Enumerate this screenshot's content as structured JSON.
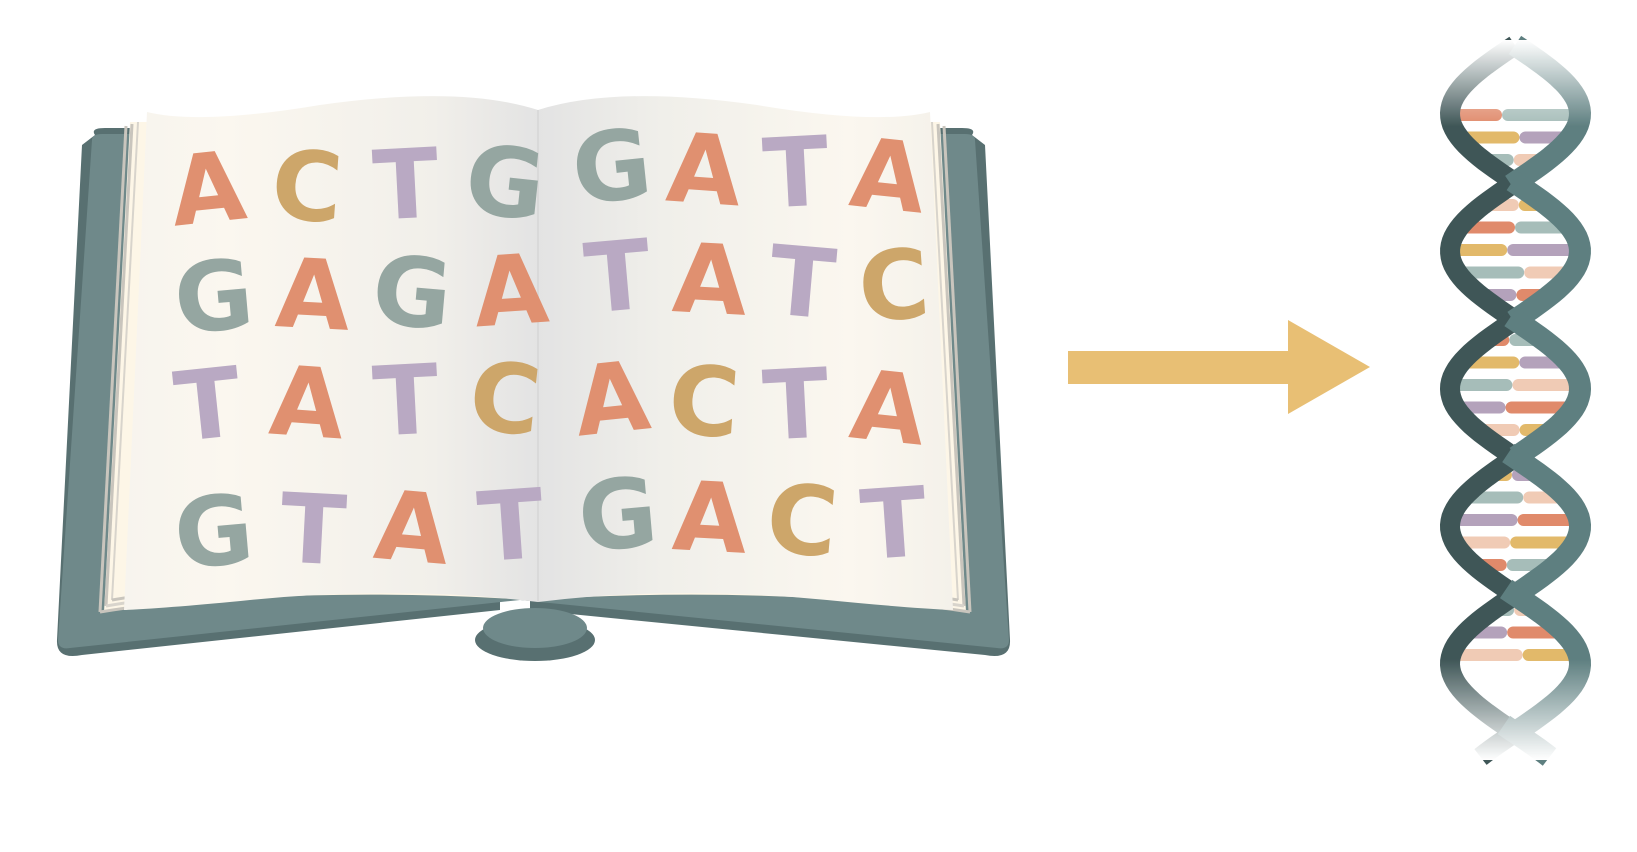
{
  "book": {
    "left_page_rows": [
      [
        "A",
        "C",
        "T",
        "G"
      ],
      [
        "G",
        "A",
        "G",
        "A"
      ],
      [
        "T",
        "A",
        "T",
        "C"
      ],
      [
        "G",
        "T",
        "A",
        "T"
      ]
    ],
    "right_page_rows": [
      [
        "G",
        "A",
        "T",
        "A"
      ],
      [
        "T",
        "A",
        "T",
        "C"
      ],
      [
        "A",
        "C",
        "T",
        "A"
      ],
      [
        "G",
        "A",
        "C",
        "T"
      ]
    ]
  },
  "letter_colors": {
    "A": "#e09070",
    "C": "#cda66a",
    "G": "#95a6a1",
    "T": "#b9a9c3"
  },
  "colors": {
    "cover": "#6f898a",
    "cover_dark": "#587071",
    "page_light": "#fbf7ef",
    "page_shade": "#e6e6e6",
    "arrow": "#e8bf74",
    "helix_strand": "#5e7f80",
    "helix_strand_dark": "#3f5657",
    "rung_colors": [
      "#e08a6b",
      "#e2b96a",
      "#a6bdb9",
      "#b4a2bb",
      "#f0cbb5"
    ]
  },
  "icons": {
    "book": "open-book-icon",
    "arrow": "right-arrow-icon",
    "dna": "dna-double-helix-icon"
  }
}
